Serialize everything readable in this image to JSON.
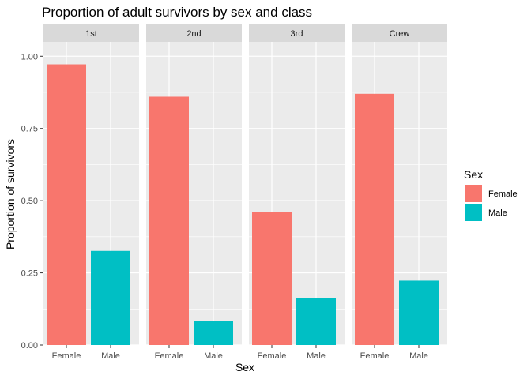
{
  "chart_data": {
    "type": "bar",
    "title": "Proportion of adult survivors by sex and class",
    "xlabel": "Sex",
    "ylabel": "Proportion of survivors",
    "ylim": [
      0,
      1.05
    ],
    "yticks": [
      "0.00",
      "0.25",
      "0.50",
      "0.75",
      "1.00"
    ],
    "ytick_values": [
      0,
      0.25,
      0.5,
      0.75,
      1.0
    ],
    "categories": [
      "Female",
      "Male"
    ],
    "grid": true,
    "legend_placement": "right",
    "legend": {
      "title": "Sex",
      "entries": [
        {
          "label": "Female",
          "color": "#F8766D"
        },
        {
          "label": "Male",
          "color": "#00BFC4"
        }
      ]
    },
    "facets": [
      {
        "label": "1st",
        "values": [
          0.972,
          0.326
        ]
      },
      {
        "label": "2nd",
        "values": [
          0.86,
          0.083
        ]
      },
      {
        "label": "3rd",
        "values": [
          0.46,
          0.163
        ]
      },
      {
        "label": "Crew",
        "values": [
          0.87,
          0.223
        ]
      }
    ],
    "colors": {
      "panel_bg": "#EBEBEB",
      "strip_bg": "#D9D9D9",
      "grid": "#FFFFFF",
      "female": "#F8766D",
      "male": "#00BFC4"
    }
  }
}
